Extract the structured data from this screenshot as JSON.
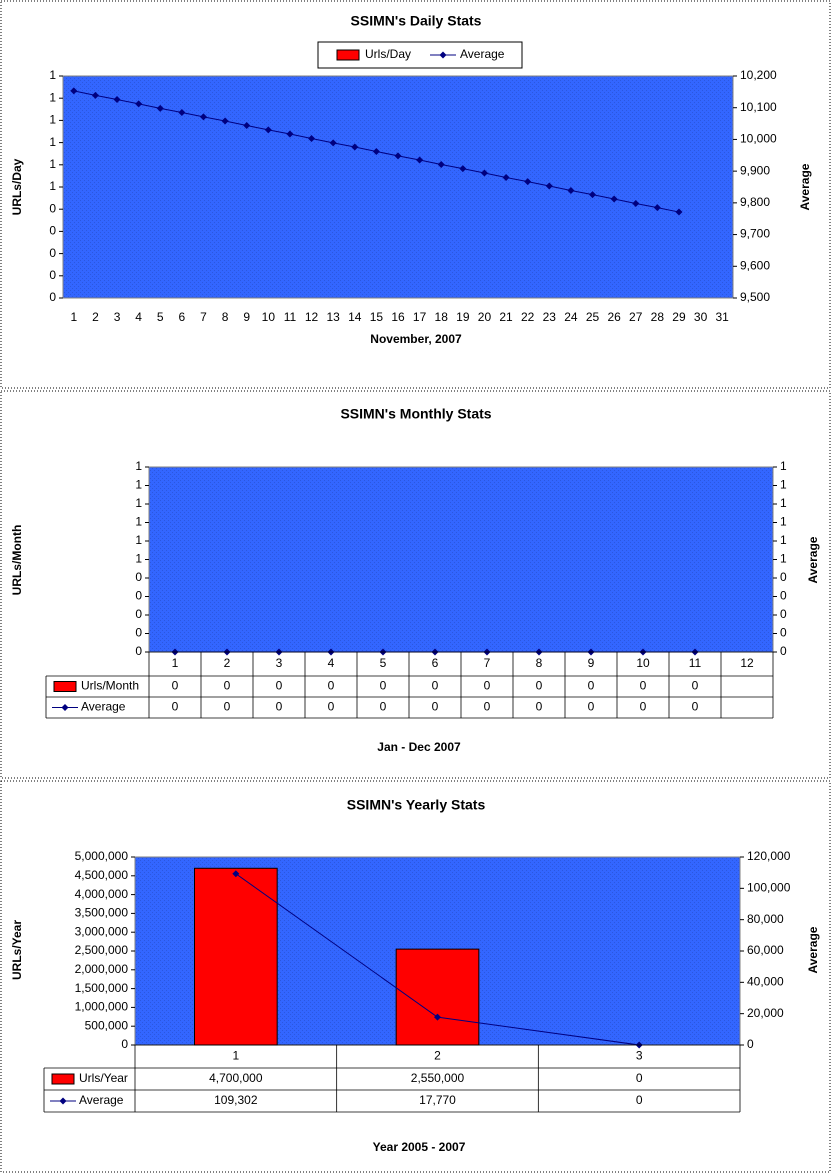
{
  "chart_data": [
    {
      "type": "combo",
      "title": "SSIMN's Daily Stats",
      "y_label": "URLs/Day",
      "y2_label": "Average",
      "x_label": "November, 2007",
      "legend": "top",
      "categories": [
        "1",
        "2",
        "3",
        "4",
        "5",
        "6",
        "7",
        "8",
        "9",
        "10",
        "11",
        "12",
        "13",
        "14",
        "15",
        "16",
        "17",
        "18",
        "19",
        "20",
        "21",
        "22",
        "23",
        "24",
        "25",
        "26",
        "27",
        "28",
        "29",
        "30",
        "31"
      ],
      "series": [
        {
          "name": "Urls/Day",
          "color": "#ff0000",
          "kind": "bar",
          "values": [
            0,
            0,
            0,
            0,
            0,
            0,
            0,
            0,
            0,
            0,
            0,
            0,
            0,
            0,
            0,
            0,
            0,
            0,
            0,
            0,
            0,
            0,
            0,
            0,
            0,
            0,
            0,
            0,
            0,
            null,
            null
          ]
        },
        {
          "name": "Average",
          "color": "#000080",
          "kind": "line",
          "axis": "y2",
          "values": [
            10153,
            10139,
            10126,
            10112,
            10098,
            10085,
            10071,
            10058,
            10044,
            10030,
            10017,
            10003,
            9989,
            9976,
            9962,
            9948,
            9935,
            9921,
            9908,
            9894,
            9880,
            9867,
            9853,
            9839,
            9826,
            9812,
            9798,
            9785,
            9771,
            null,
            null
          ]
        }
      ],
      "ylim": [
        0,
        1
      ],
      "yticks": [
        0,
        {
          "value": 0.1,
          "label": "0"
        },
        {
          "value": 0.2,
          "label": "0"
        },
        {
          "value": 0.3,
          "label": "0"
        },
        {
          "value": 0.4,
          "label": "0"
        },
        {
          "value": 0.5,
          "label": "1"
        },
        {
          "value": 0.6,
          "label": "1"
        },
        {
          "value": 0.7,
          "label": "1"
        },
        {
          "value": 0.8,
          "label": "1"
        },
        {
          "value": 0.9,
          "label": "1"
        },
        1
      ],
      "y2lim": [
        9500,
        10200
      ],
      "y2ticks": [
        {
          "value": 9500,
          "label": "9,500"
        },
        {
          "value": 9600,
          "label": "9,600"
        },
        {
          "value": 9700,
          "label": "9,700"
        },
        {
          "value": 9800,
          "label": "9,800"
        },
        {
          "value": 9900,
          "label": "9,900"
        },
        {
          "value": 10000,
          "label": "10,000"
        },
        {
          "value": 10100,
          "label": "10,100"
        },
        {
          "value": 10200,
          "label": "10,200"
        }
      ]
    },
    {
      "type": "combo",
      "title": "SSIMN's Monthly Stats",
      "y_label": "URLs/Month",
      "y2_label": "Average",
      "x_label": "Jan - Dec 2007",
      "data_table": true,
      "categories": [
        "1",
        "2",
        "3",
        "4",
        "5",
        "6",
        "7",
        "8",
        "9",
        "10",
        "11",
        "12"
      ],
      "series": [
        {
          "name": "Urls/Month",
          "color": "#ff0000",
          "kind": "bar",
          "values": [
            0,
            0,
            0,
            0,
            0,
            0,
            0,
            0,
            0,
            0,
            0,
            null
          ]
        },
        {
          "name": "Average",
          "color": "#000080",
          "kind": "line",
          "axis": "y2",
          "values": [
            0,
            0,
            0,
            0,
            0,
            0,
            0,
            0,
            0,
            0,
            0,
            null
          ]
        }
      ],
      "ylim": [
        0,
        1
      ],
      "yticks": [
        0,
        {
          "value": 0.1,
          "label": "0"
        },
        {
          "value": 0.2,
          "label": "0"
        },
        {
          "value": 0.3,
          "label": "0"
        },
        {
          "value": 0.4,
          "label": "0"
        },
        {
          "value": 0.5,
          "label": "1"
        },
        {
          "value": 0.6,
          "label": "1"
        },
        {
          "value": 0.7,
          "label": "1"
        },
        {
          "value": 0.8,
          "label": "1"
        },
        {
          "value": 0.9,
          "label": "1"
        },
        1
      ],
      "y2lim": [
        0,
        1
      ],
      "y2ticks": [
        0,
        {
          "value": 0.1,
          "label": "0"
        },
        {
          "value": 0.2,
          "label": "0"
        },
        {
          "value": 0.3,
          "label": "0"
        },
        {
          "value": 0.4,
          "label": "0"
        },
        {
          "value": 0.5,
          "label": "1"
        },
        {
          "value": 0.6,
          "label": "1"
        },
        {
          "value": 0.7,
          "label": "1"
        },
        {
          "value": 0.8,
          "label": "1"
        },
        {
          "value": 0.9,
          "label": "1"
        },
        1
      ]
    },
    {
      "type": "combo",
      "title": "SSIMN's Yearly Stats",
      "y_label": "URLs/Year",
      "y2_label": "Average",
      "x_label": "Year 2005 - 2007",
      "data_table": true,
      "categories": [
        "1",
        "2",
        "3"
      ],
      "series": [
        {
          "name": "Urls/Year",
          "color": "#ff0000",
          "kind": "bar",
          "values": [
            4700000,
            2550000,
            0
          ],
          "value_labels": [
            "4,700,000",
            "2,550,000",
            "0"
          ]
        },
        {
          "name": "Average",
          "color": "#000080",
          "kind": "line",
          "axis": "y2",
          "values": [
            109302,
            17770,
            0
          ],
          "value_labels": [
            "109,302",
            "17,770",
            "0"
          ]
        }
      ],
      "ylim": [
        0,
        5000000
      ],
      "yticks": [
        0,
        {
          "value": 500000,
          "label": "500,000"
        },
        {
          "value": 1000000,
          "label": "1,000,000"
        },
        {
          "value": 1500000,
          "label": "1,500,000"
        },
        {
          "value": 2000000,
          "label": "2,000,000"
        },
        {
          "value": 2500000,
          "label": "2,500,000"
        },
        {
          "value": 3000000,
          "label": "3,000,000"
        },
        {
          "value": 3500000,
          "label": "3,500,000"
        },
        {
          "value": 4000000,
          "label": "4,000,000"
        },
        {
          "value": 4500000,
          "label": "4,500,000"
        },
        {
          "value": 5000000,
          "label": "5,000,000"
        }
      ],
      "y2lim": [
        0,
        120000
      ],
      "y2ticks": [
        0,
        {
          "value": 20000,
          "label": "20,000"
        },
        {
          "value": 40000,
          "label": "40,000"
        },
        {
          "value": 60000,
          "label": "60,000"
        },
        {
          "value": 80000,
          "label": "80,000"
        },
        {
          "value": 100000,
          "label": "100,000"
        },
        {
          "value": 120000,
          "label": "120,000"
        }
      ]
    }
  ]
}
